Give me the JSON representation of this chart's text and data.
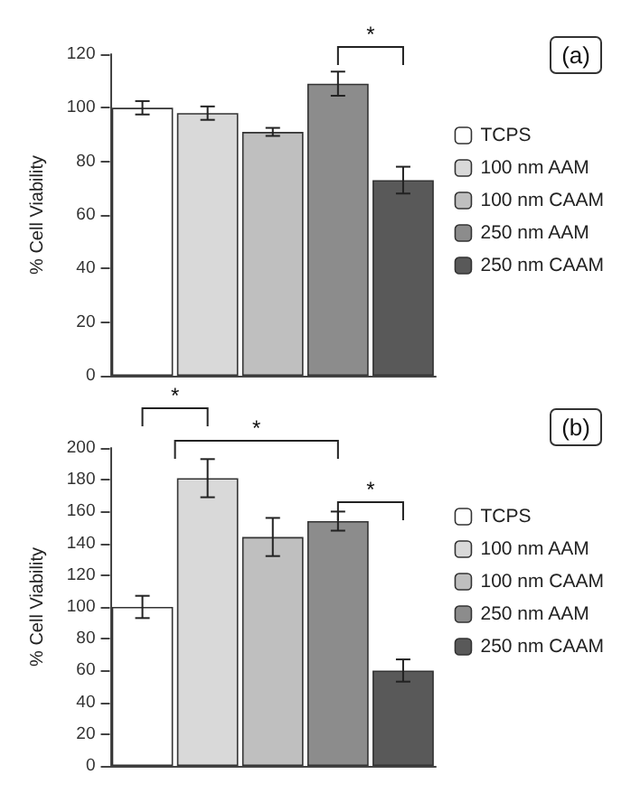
{
  "chart_data": [
    {
      "type": "bar",
      "categories": [
        null,
        null,
        null,
        null,
        null
      ],
      "ylabel": "% Cell Viability",
      "ylim": [
        0,
        120
      ],
      "yticks": [
        0,
        20,
        40,
        60,
        80,
        100,
        120
      ],
      "grid": false,
      "legend": "right",
      "tick_labels": "y",
      "series": [
        {
          "name": "TCPS",
          "color": "#ffffff",
          "values": [
            100,
            null,
            null,
            null,
            null
          ],
          "errors": [
            2.5,
            null,
            null,
            null,
            null
          ]
        },
        {
          "name": "100 nm AAM",
          "color": "#d9d9d9",
          "values": [
            null,
            98,
            null,
            null,
            null
          ],
          "errors": [
            null,
            2.5,
            null,
            null,
            null
          ]
        },
        {
          "name": "100 nm CAAM",
          "color": "#bfbfbf",
          "values": [
            null,
            null,
            91,
            null,
            null
          ],
          "errors": [
            null,
            null,
            1.5,
            null,
            null
          ]
        },
        {
          "name": "250 nm AAM",
          "color": "#8c8c8c",
          "values": [
            null,
            null,
            null,
            109,
            null
          ],
          "errors": [
            null,
            null,
            null,
            4.5,
            null
          ]
        },
        {
          "name": "250 nm CAAM",
          "color": "#595959",
          "values": [
            null,
            null,
            null,
            null,
            73
          ],
          "errors": [
            null,
            null,
            null,
            null,
            5
          ]
        }
      ],
      "annotations": [
        "(a)",
        "*"
      ]
    },
    {
      "type": "bar",
      "categories": [
        null,
        null,
        null,
        null,
        null
      ],
      "ylabel": "% Cell Viability",
      "ylim": [
        0,
        200
      ],
      "yticks": [
        0,
        20,
        40,
        60,
        80,
        100,
        120,
        140,
        160,
        180,
        200
      ],
      "grid": false,
      "legend": "right",
      "tick_labels": "y",
      "series": [
        {
          "name": "TCPS",
          "color": "#ffffff",
          "values": [
            100,
            null,
            null,
            null,
            null
          ],
          "errors": [
            7,
            null,
            null,
            null,
            null
          ]
        },
        {
          "name": "100 nm AAM",
          "color": "#d9d9d9",
          "values": [
            null,
            181,
            null,
            null,
            null
          ],
          "errors": [
            null,
            12,
            null,
            null,
            null
          ]
        },
        {
          "name": "100 nm CAAM",
          "color": "#bfbfbf",
          "values": [
            null,
            null,
            144,
            null,
            null
          ],
          "errors": [
            null,
            null,
            12,
            null,
            null
          ]
        },
        {
          "name": "250 nm AAM",
          "color": "#8c8c8c",
          "values": [
            null,
            null,
            null,
            154,
            null
          ],
          "errors": [
            null,
            null,
            null,
            6,
            null
          ]
        },
        {
          "name": "250 nm CAAM",
          "color": "#595959",
          "values": [
            null,
            null,
            null,
            null,
            60
          ],
          "errors": [
            null,
            null,
            null,
            null,
            7
          ]
        }
      ],
      "annotations": [
        "(b)",
        "*",
        "*",
        "*"
      ]
    }
  ]
}
